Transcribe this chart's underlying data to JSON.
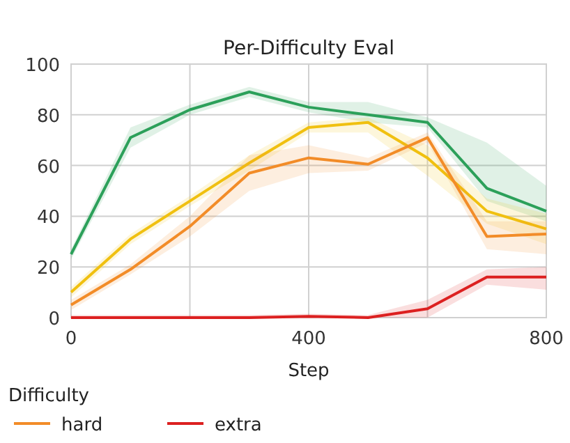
{
  "chart_data": {
    "type": "line",
    "title": "Per-Difficulty Eval",
    "xlabel": "Step",
    "legend_title": "Difficulty",
    "x": [
      0,
      100,
      200,
      300,
      400,
      500,
      600,
      700,
      800
    ],
    "series": [
      {
        "color": "#2ca05a",
        "values": [
          25,
          71,
          82,
          89,
          83,
          80,
          77,
          51,
          42
        ],
        "lower": [
          23,
          67,
          80,
          87,
          81,
          77,
          75,
          46,
          38
        ],
        "upper": [
          27,
          75,
          84,
          91,
          85,
          85,
          79,
          69,
          52
        ]
      },
      {
        "color": "#f0c010",
        "values": [
          10,
          31,
          46,
          61,
          75,
          77,
          63,
          42,
          35
        ],
        "lower": [
          8,
          29,
          44,
          58,
          73,
          73,
          56,
          37,
          29
        ],
        "upper": [
          12,
          33,
          48,
          64,
          77,
          79,
          68,
          47,
          41
        ]
      },
      {
        "name": "hard",
        "color": "#f28c28",
        "values": [
          5,
          19,
          36,
          57,
          63,
          60.5,
          71,
          32,
          33
        ],
        "lower": [
          3,
          17,
          32,
          50,
          57,
          58,
          69,
          27,
          25
        ],
        "upper": [
          7,
          21,
          40,
          64,
          68,
          63,
          73,
          38,
          38
        ]
      },
      {
        "name": "extra",
        "color": "#dc2020",
        "values": [
          0,
          0,
          0,
          0,
          0.5,
          0,
          3.5,
          16,
          16
        ],
        "lower": [
          0,
          0,
          0,
          0,
          0,
          0,
          0,
          13,
          11
        ],
        "upper": [
          1,
          1,
          1,
          1,
          1.5,
          1,
          7,
          19,
          20
        ]
      }
    ],
    "xlim": [
      0,
      800
    ],
    "xticks": [
      0,
      {
        "value": 200,
        "label": null
      },
      400,
      {
        "value": 600,
        "label": null
      },
      800
    ],
    "ylim": [
      0,
      100
    ],
    "yticks": [
      0,
      20,
      40,
      60,
      80,
      100
    ],
    "grid": true,
    "legend": "bottom",
    "marker": "none",
    "line_style": "solid"
  }
}
